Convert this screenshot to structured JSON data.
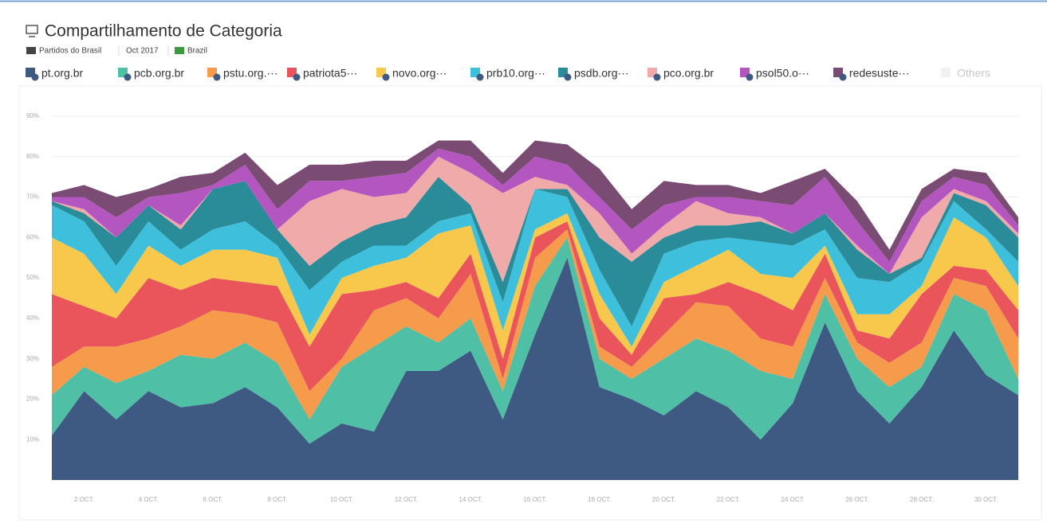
{
  "filters": [
    "Partidos do Brasil",
    "Oct 2017",
    "Brazil"
  ],
  "chart_data": {
    "type": "stacked_area",
    "title": "Compartilhamento de Categoria",
    "categories": [
      null,
      "2 OCT.",
      null,
      "4 OCT.",
      null,
      "6 OCT.",
      null,
      "8 OCT.",
      null,
      "10 OCT.",
      null,
      "12 OCT.",
      null,
      "14 OCT.",
      null,
      "16 OCT.",
      null,
      "18 OCT.",
      null,
      "20 OCT.",
      null,
      "22 OCT.",
      null,
      "24 OCT.",
      null,
      "26 OCT.",
      null,
      "28 OCT.",
      null,
      "30 OCT.",
      null
    ],
    "ylim": [
      0,
      90
    ],
    "yticks": [
      {
        "value": 10,
        "label": "10%"
      },
      {
        "value": 20,
        "label": "20%"
      },
      {
        "value": 30,
        "label": "30%"
      },
      {
        "value": 40,
        "label": "40%"
      },
      {
        "value": 50,
        "label": "50%"
      },
      {
        "value": 60,
        "label": "60%"
      },
      {
        "value": 70,
        "label": "70%"
      },
      {
        "value": 80,
        "label": "80%"
      },
      {
        "value": 90,
        "label": "90%"
      }
    ],
    "grid": true,
    "series": [
      {
        "name": "pt.org.br",
        "color": "#3f5a82",
        "values": [
          11,
          22,
          15,
          22,
          18,
          19,
          23,
          18,
          9,
          14,
          12,
          27,
          27,
          32,
          15,
          36,
          55,
          23,
          20,
          16,
          22,
          18,
          10,
          19,
          39,
          22,
          14,
          23,
          37,
          26,
          21
        ]
      },
      {
        "name": "pcb.org.br",
        "color": "#4fbfa6",
        "values": [
          10,
          6,
          9,
          5,
          13,
          11,
          11,
          11,
          6,
          14,
          21,
          11,
          7,
          8,
          7,
          12,
          5,
          7,
          5,
          14,
          13,
          14,
          17,
          6,
          7,
          8,
          9,
          5,
          9,
          16,
          4
        ]
      },
      {
        "name": "pstu.org.···",
        "color": "#f69a4c",
        "values": [
          7,
          5,
          9,
          8,
          7,
          12,
          7,
          10,
          7,
          2,
          9,
          7,
          6,
          11,
          3,
          7,
          2,
          3,
          3,
          6,
          9,
          11,
          8,
          8,
          4,
          4,
          6,
          6,
          4,
          6,
          10
        ]
      },
      {
        "name": "patriota5···",
        "color": "#e9555a",
        "values": [
          18,
          10,
          7,
          15,
          9,
          8,
          8,
          9,
          11,
          16,
          5,
          4,
          5,
          5,
          5,
          5,
          2,
          7,
          3,
          9,
          2,
          6,
          11,
          9,
          6,
          3,
          6,
          12,
          3,
          4,
          7
        ]
      },
      {
        "name": "novo.org···",
        "color": "#f8c84c",
        "values": [
          14,
          13,
          6,
          8,
          6,
          7,
          8,
          7,
          3,
          4,
          6,
          6,
          16,
          7,
          7,
          2,
          2,
          6,
          2,
          4,
          7,
          8,
          5,
          8,
          2,
          4,
          6,
          2,
          12,
          8,
          6
        ]
      },
      {
        "name": "prb10.org···",
        "color": "#3ec0dc",
        "values": [
          8,
          8,
          7,
          6,
          4,
          5,
          7,
          3,
          11,
          4,
          5,
          3,
          3,
          3,
          7,
          10,
          4,
          6,
          5,
          7,
          6,
          3,
          8,
          8,
          4,
          9,
          8,
          6,
          4,
          2,
          6
        ]
      },
      {
        "name": "psdb.org···",
        "color": "#2a8c98",
        "values": [
          1,
          2,
          7,
          4,
          5,
          10,
          10,
          4,
          6,
          5,
          5,
          7,
          11,
          2,
          5,
          0,
          2,
          8,
          16,
          4,
          4,
          3,
          5,
          3,
          4,
          7,
          2,
          1,
          2,
          6,
          6
        ]
      },
      {
        "name": "pco.org.br",
        "color": "#f0aaaa",
        "values": [
          0,
          1,
          0,
          0,
          1,
          0,
          0,
          0,
          16,
          13,
          7,
          6,
          5,
          8,
          22,
          3,
          1,
          6,
          2,
          3,
          6,
          3,
          1,
          0,
          0,
          1,
          0,
          10,
          1,
          1,
          1
        ]
      },
      {
        "name": "psol50.o···",
        "color": "#b456c0",
        "values": [
          1,
          3,
          5,
          2,
          8,
          1,
          4,
          5,
          5,
          2,
          5,
          5,
          2,
          4,
          2,
          5,
          5,
          4,
          6,
          5,
          1,
          4,
          4,
          7,
          9,
          6,
          3,
          4,
          3,
          4,
          2
        ]
      },
      {
        "name": "redesuste···",
        "color": "#7a4b73",
        "values": [
          1,
          3,
          5,
          2,
          4,
          3,
          3,
          6,
          4,
          4,
          4,
          3,
          2,
          4,
          3,
          4,
          5,
          7,
          5,
          6,
          3,
          3,
          2,
          6,
          2,
          5,
          3,
          3,
          2,
          3,
          2
        ]
      },
      {
        "name": "Others",
        "color": "#dddddd",
        "visible": false
      }
    ]
  }
}
